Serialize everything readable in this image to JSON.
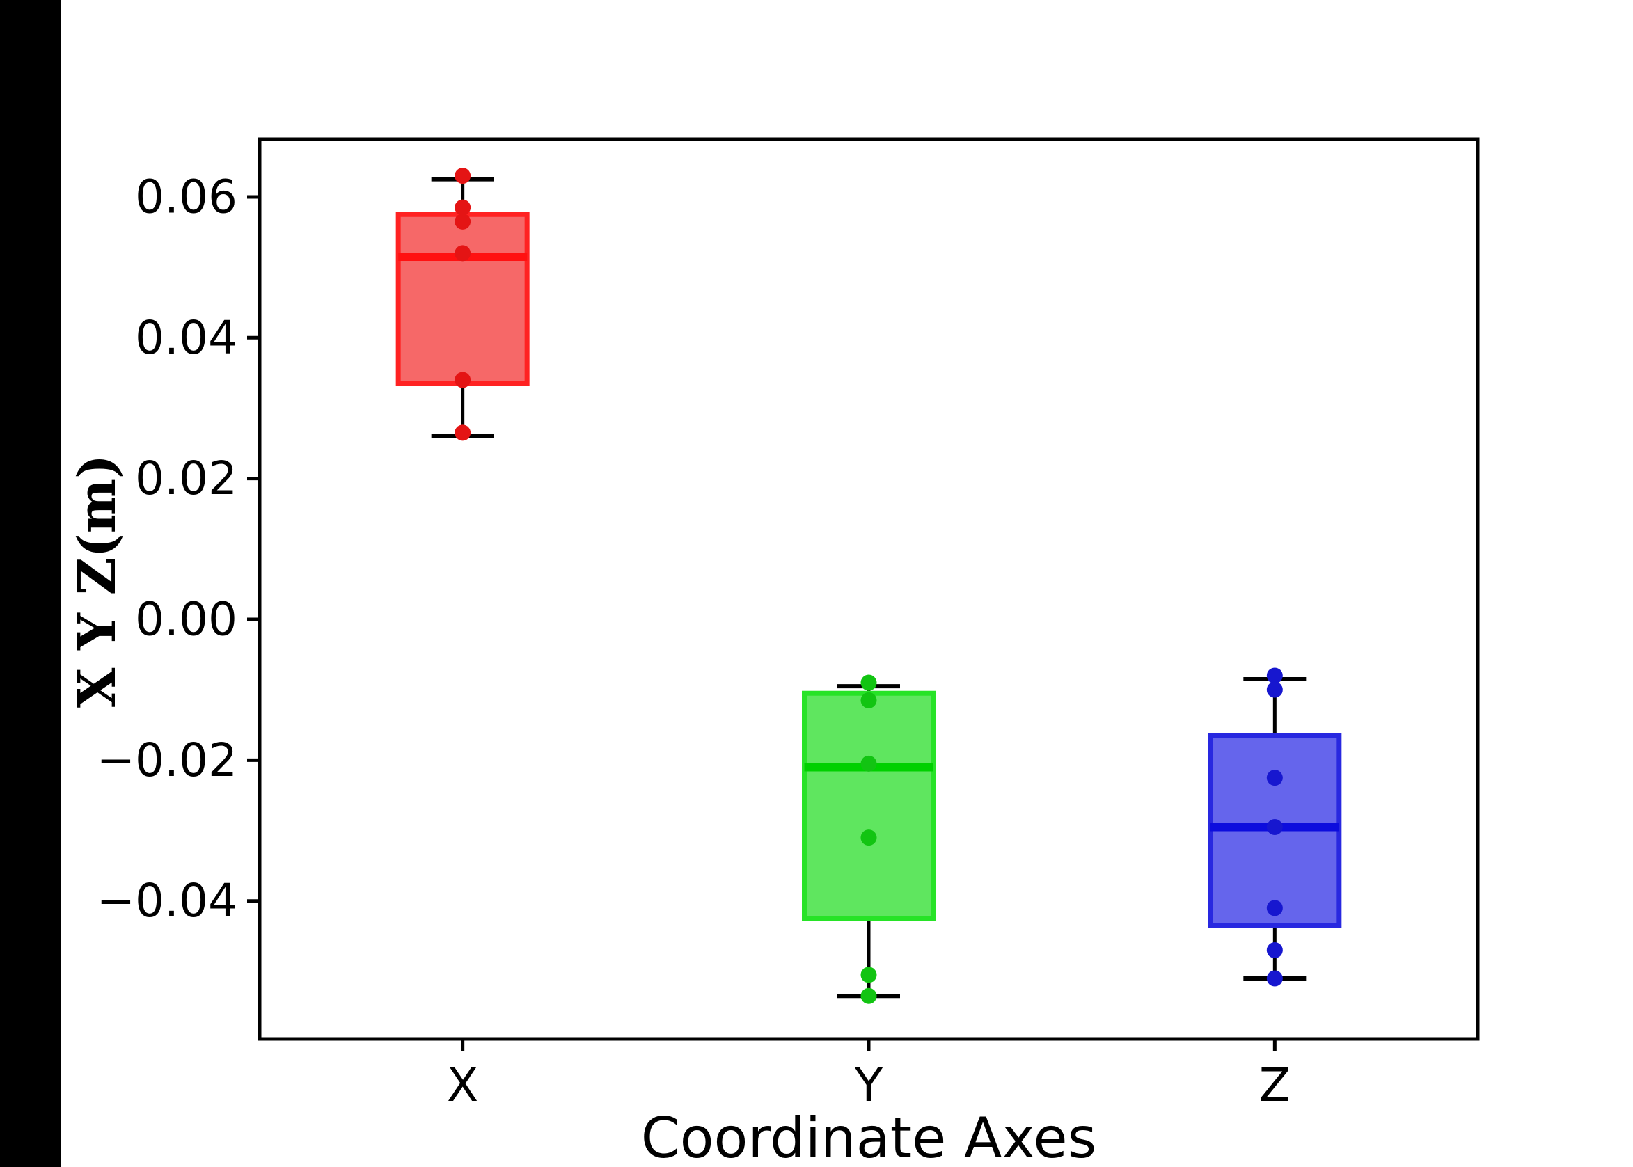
{
  "figure": {
    "background_color": "#ffffff",
    "left_bar_color": "#000000",
    "axis_color": "#000000",
    "xlabel": "Coordinate Axes",
    "ylabel": "X Y Z(m)",
    "x_tick_labels": [
      "X",
      "Y",
      "Z"
    ],
    "y_tick_labels": [
      "0.06",
      "0.04",
      "0.02",
      "0.00",
      "−0.02",
      "−0.04"
    ]
  },
  "chart_data": {
    "type": "box",
    "title": "",
    "xlabel": "Coordinate Axes",
    "ylabel": "X Y Z(m)",
    "categories": [
      "X",
      "Y",
      "Z"
    ],
    "ylim": [
      -0.0596,
      0.0682
    ],
    "yticks": [
      0.06,
      0.04,
      0.02,
      0.0,
      -0.02,
      -0.04
    ],
    "grid": false,
    "legend": null,
    "series": [
      {
        "name": "X",
        "edge_color": "#ff2222",
        "fill_color": "#f66868",
        "median_color": "#ff1111",
        "dot_color": "#e41414",
        "whisker_low": 0.026,
        "q1": 0.0335,
        "median": 0.0515,
        "q3": 0.0575,
        "whisker_high": 0.0625,
        "points": [
          0.063,
          0.0585,
          0.0565,
          0.052,
          0.034,
          0.0265
        ]
      },
      {
        "name": "Y",
        "edge_color": "#27e327",
        "fill_color": "#5fe65f",
        "median_color": "#00d000",
        "dot_color": "#12c412",
        "whisker_low": -0.0535,
        "q1": -0.0425,
        "median": -0.021,
        "q3": -0.0105,
        "whisker_high": -0.0095,
        "points": [
          -0.009,
          -0.0115,
          -0.0205,
          -0.031,
          -0.0505,
          -0.0535
        ]
      },
      {
        "name": "Z",
        "edge_color": "#2828e0",
        "fill_color": "#6565ec",
        "median_color": "#0d0ddd",
        "dot_color": "#1717cf",
        "whisker_low": -0.051,
        "q1": -0.0435,
        "median": -0.0295,
        "q3": -0.0165,
        "whisker_high": -0.0085,
        "points": [
          -0.008,
          -0.01,
          -0.0225,
          -0.0295,
          -0.041,
          -0.047,
          -0.051
        ]
      }
    ]
  }
}
